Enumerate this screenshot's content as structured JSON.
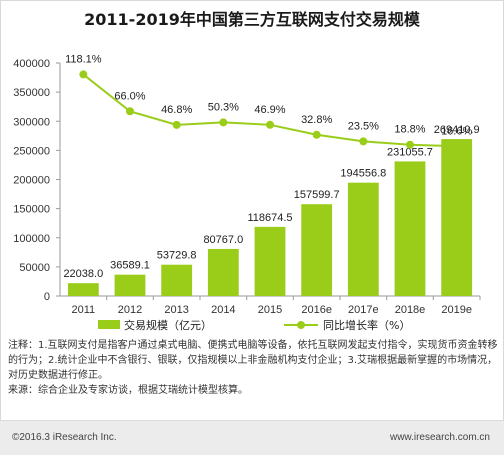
{
  "chart_data": {
    "type": "bar",
    "title": "2011-2019年中国第三方互联网支付交易规模",
    "categories": [
      "2011",
      "2012",
      "2013",
      "2014",
      "2015",
      "2016e",
      "2017e",
      "2018e",
      "2019e"
    ],
    "series": [
      {
        "name": "交易规模（亿元）",
        "type": "bar",
        "color": "#9acd1a",
        "values": [
          22038.0,
          36589.1,
          53729.8,
          80767.0,
          118674.5,
          157599.7,
          194556.8,
          231055.7,
          269410.9
        ],
        "labels": [
          "22038.0",
          "36589.1",
          "53729.8",
          "80767.0",
          "118674.5",
          "157599.7",
          "194556.8",
          "231055.7",
          "269410.9"
        ]
      },
      {
        "name": "同比增长率（%）",
        "type": "line",
        "color": "#9acd1a",
        "values": [
          118.1,
          66.0,
          46.8,
          50.3,
          46.9,
          32.8,
          23.5,
          18.8,
          16.6
        ],
        "labels": [
          "118.1%",
          "66.0%",
          "46.8%",
          "50.3%",
          "46.9%",
          "32.8%",
          "23.5%",
          "18.8%",
          "16.6%"
        ]
      }
    ],
    "y_ticks": [
      "400000",
      "350000",
      "300000",
      "250000",
      "200000",
      "150000",
      "100000",
      "50000",
      "0"
    ],
    "ylim": [
      0,
      400000
    ],
    "grid": false,
    "legend": "bottom"
  },
  "notes": {
    "line1": "注释：1.互联网支付是指客户通过桌式电脑、便携式电脑等设备，依托互联网发起支付指令，实现货币资金转移的行为；2.统计企业中不含银行、银联，仅指规模以上非金融机构支付企业；3.艾瑞根据最新掌握的市场情况，对历史数据进行修正。",
    "line2": "来源：综合企业及专家访谈，根据艾瑞统计模型核算。"
  },
  "footer": {
    "copyright": "©2016.3 iResearch Inc.",
    "site": "www.iresearch.com.cn"
  }
}
